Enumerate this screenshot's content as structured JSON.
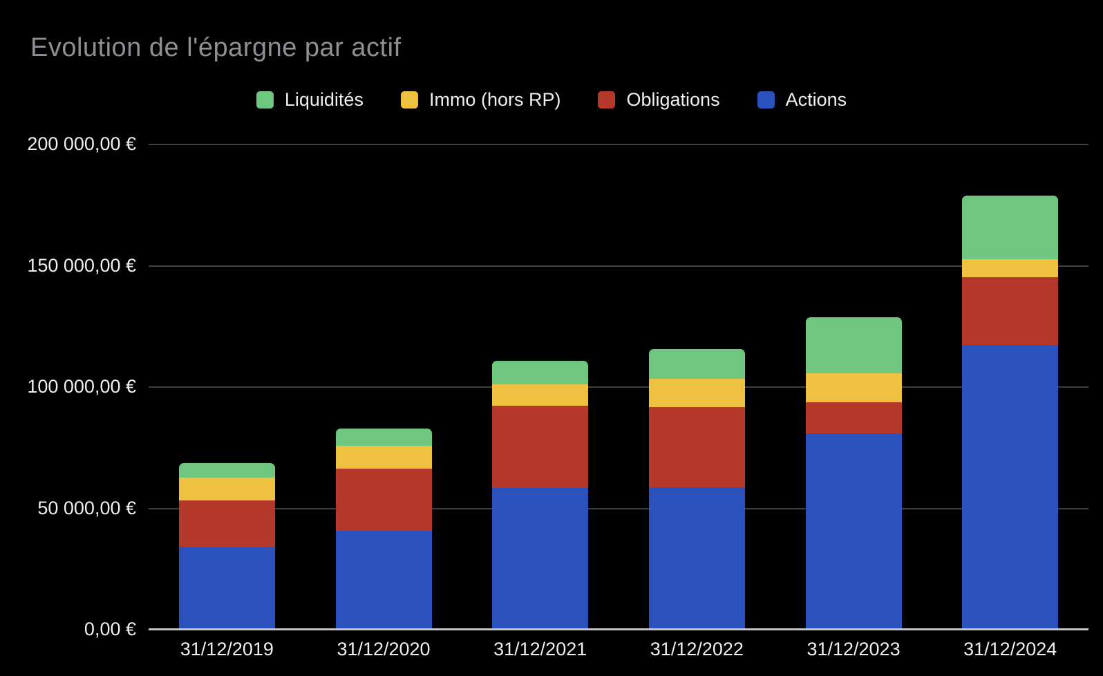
{
  "colors": {
    "background": "#000000",
    "title_text": "#8F9094",
    "axis_text": "#EFEFEF",
    "legend_text": "#EFEFEF",
    "gridline": "#404040",
    "baseline": "#C6C6C6"
  },
  "chart_data": {
    "type": "bar",
    "stacked": true,
    "title": "Evolution de l'épargne par actif",
    "x_categories": [
      "31/12/2019",
      "31/12/2020",
      "31/12/2021",
      "31/12/2022",
      "31/12/2023",
      "31/12/2024"
    ],
    "series": [
      {
        "name": "Liquidités",
        "color": "#6FC67E",
        "values": [
          6000,
          7000,
          9500,
          12500,
          23000,
          26000
        ]
      },
      {
        "name": "Immo (hors RP)",
        "color": "#EEC140",
        "values": [
          9500,
          9500,
          9000,
          11500,
          12000,
          7500
        ]
      },
      {
        "name": "Obligations",
        "color": "#B4392A",
        "values": [
          19000,
          25500,
          34000,
          33000,
          13000,
          28000
        ]
      },
      {
        "name": "Actions",
        "color": "#2B51BC",
        "values": [
          34000,
          40500,
          58000,
          58500,
          80500,
          117000
        ]
      }
    ],
    "stack_totals": [
      68500,
      82500,
      110500,
      115500,
      128500,
      178500
    ],
    "y_ticks": [
      {
        "label": "200 000,00 €",
        "value": 200000
      },
      {
        "label": "150 000,00 €",
        "value": 150000
      },
      {
        "label": "100 000,00 €",
        "value": 100000
      },
      {
        "label": "50 000,00 €",
        "value": 50000
      },
      {
        "label": "0,00 €",
        "value": 0
      }
    ],
    "ylim": [
      0,
      200000
    ],
    "grid": true,
    "legend_position": "top",
    "stacking_order_bottom_to_top": [
      "Actions",
      "Obligations",
      "Immo (hors RP)",
      "Liquidités"
    ]
  }
}
